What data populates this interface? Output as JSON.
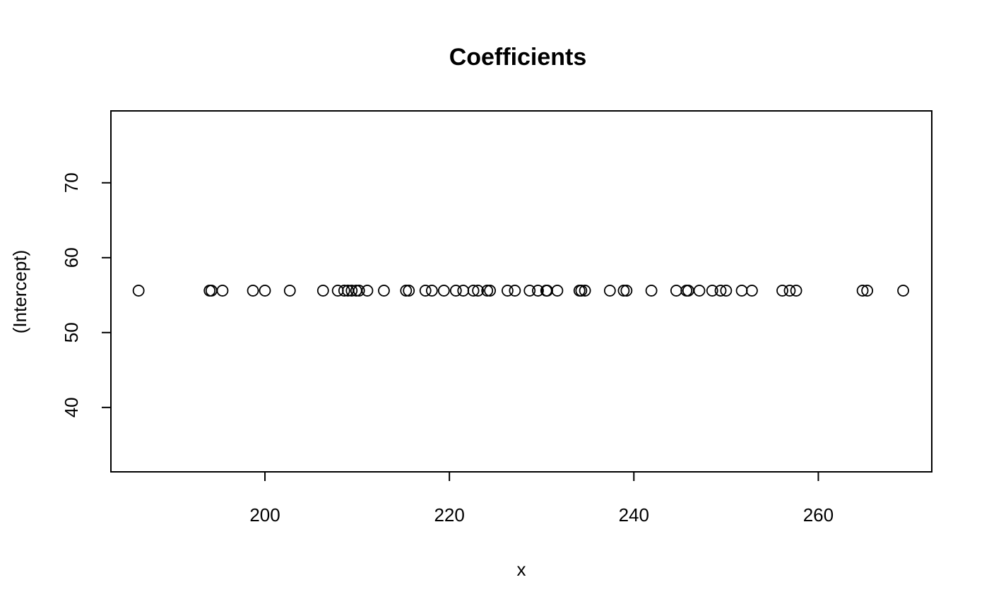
{
  "chart_data": {
    "type": "scatter",
    "title": "Coefficients",
    "xlabel": "x",
    "ylabel": "(Intercept)",
    "xlim": [
      183.3,
      272.3
    ],
    "ylim": [
      31.4,
      79.6
    ],
    "xticks": [
      200,
      220,
      240,
      260
    ],
    "yticks": [
      40,
      50,
      60,
      70
    ],
    "grid": false,
    "series": [
      {
        "x": [
          186.3,
          194.0,
          194.2,
          195.4,
          198.7,
          200.0,
          202.7,
          206.3,
          207.9,
          208.6,
          209.0,
          209.4,
          209.9,
          210.2,
          211.1,
          212.9,
          215.3,
          215.6,
          217.4,
          218.1,
          219.4,
          220.7,
          221.5,
          222.6,
          223.1,
          224.1,
          224.4,
          226.3,
          227.1,
          228.7,
          229.6,
          230.5,
          230.6,
          231.7,
          234.1,
          234.3,
          234.7,
          237.4,
          238.9,
          239.2,
          241.9,
          244.6,
          245.7,
          245.9,
          247.1,
          248.5,
          249.4,
          250.0,
          251.7,
          252.8,
          256.1,
          256.9,
          257.6,
          264.8,
          265.3,
          269.2
        ],
        "y": [
          55.6,
          55.6,
          55.6,
          55.6,
          55.6,
          55.6,
          55.6,
          55.6,
          55.6,
          55.6,
          55.6,
          55.6,
          55.6,
          55.6,
          55.6,
          55.6,
          55.6,
          55.6,
          55.6,
          55.6,
          55.6,
          55.6,
          55.6,
          55.6,
          55.6,
          55.6,
          55.6,
          55.6,
          55.6,
          55.6,
          55.6,
          55.6,
          55.6,
          55.6,
          55.6,
          55.6,
          55.6,
          55.6,
          55.6,
          55.6,
          55.6,
          55.6,
          55.6,
          55.6,
          55.6,
          55.6,
          55.6,
          55.6,
          55.6,
          55.6,
          55.6,
          55.6,
          55.6,
          55.6,
          55.6,
          55.6
        ]
      }
    ]
  }
}
